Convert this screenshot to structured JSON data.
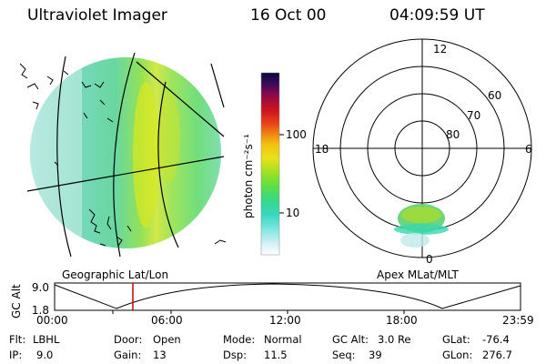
{
  "header": {
    "instrument": "Ultraviolet Imager",
    "date": "16 Oct 00",
    "time": "04:09:59 UT"
  },
  "colorbar": {
    "unit_label": "photon cm⁻²s⁻¹",
    "ticks": [
      "100",
      "10"
    ]
  },
  "polar_plot": {
    "mlt_labels": [
      "12",
      "18",
      "6",
      "0"
    ],
    "lat_labels": [
      "60",
      "70",
      "80"
    ]
  },
  "panel_labels": {
    "left": "Geographic Lat/Lon",
    "right": "Apex MLat/MLT"
  },
  "altitude_plot": {
    "ylabel": "GC Alt",
    "yticks": [
      "9.0",
      "1.8"
    ],
    "xticks": [
      "00:00",
      "06:00",
      "12:00",
      "18:00",
      "23:59"
    ],
    "current_time_marker": "04:09:59"
  },
  "info": {
    "filter_label": "Flt:",
    "filter_value": "LBHL",
    "door_label": "Door:",
    "door_value": "Open",
    "mode_label": "Mode:",
    "mode_value": "Normal",
    "gcalt_label": "GC Alt:",
    "gcalt_value": "3.0 Re",
    "glat_label": "GLat:",
    "glat_value": "-76.4",
    "ip_label": "IP:",
    "ip_value": "9.0",
    "gain_label": "Gain:",
    "gain_value": "13",
    "dsp_label": "Dsp:",
    "dsp_value": "11.5",
    "seq_label": "Seq:",
    "seq_value": "39",
    "glon_label": "GLon:",
    "glon_value": "276.7"
  },
  "colors": {
    "colorbar_gradient": [
      "#ffffff",
      "#d6f0f5",
      "#7fe6e0",
      "#38d8c0",
      "#36d889",
      "#5fe040",
      "#a8e020",
      "#e6e21a",
      "#f4c510",
      "#f08a10",
      "#e84418",
      "#cc1020",
      "#8a0a4a",
      "#3a0a5a",
      "#0a0a3a"
    ],
    "marker": "#cc0000"
  }
}
